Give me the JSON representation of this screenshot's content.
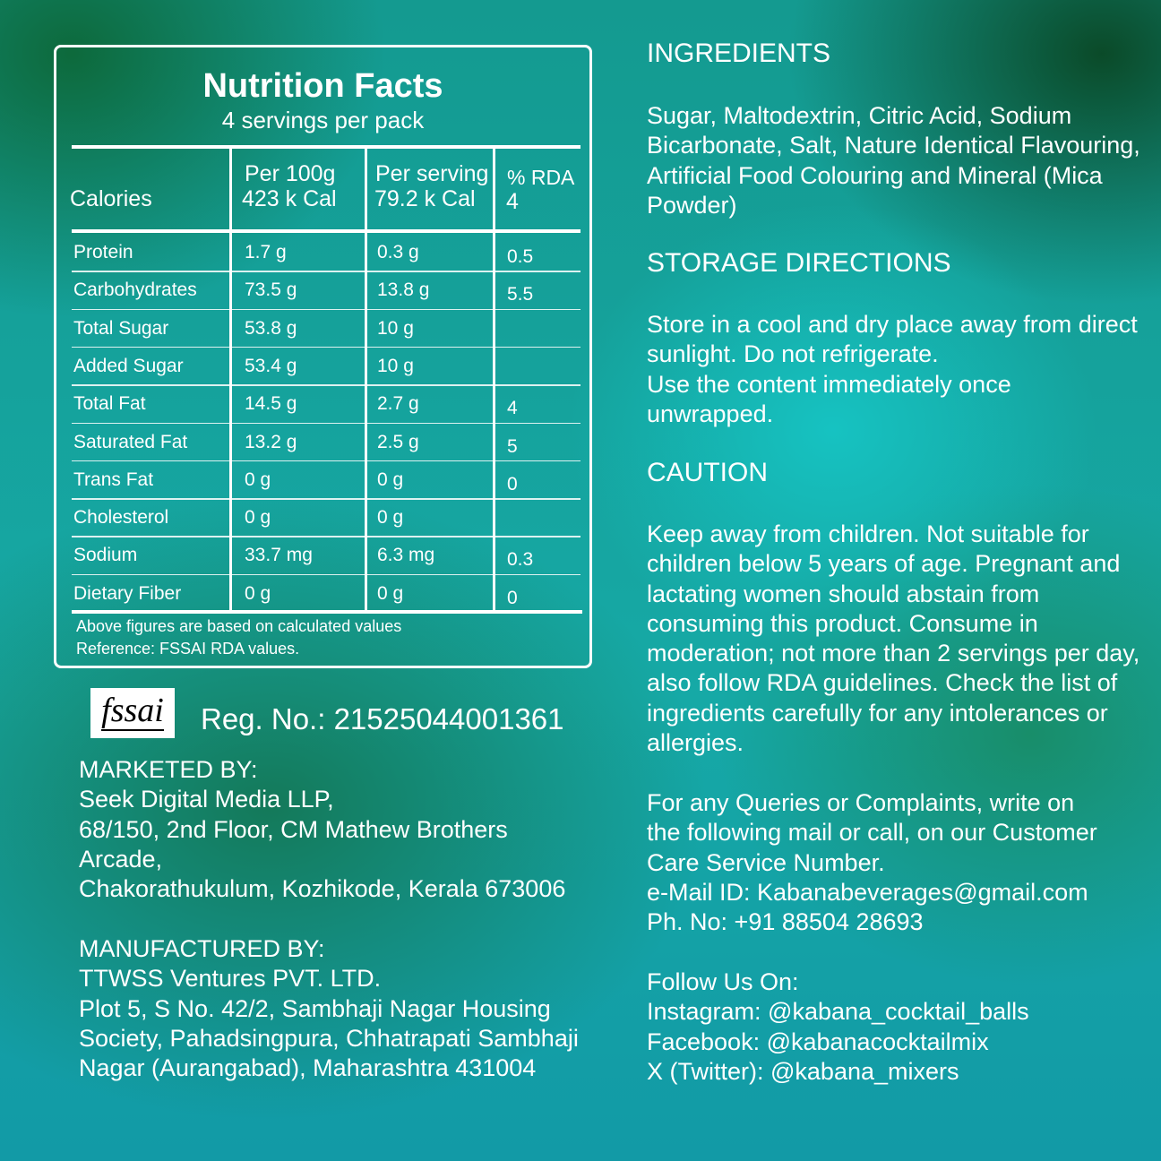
{
  "nutrition": {
    "title": "Nutrition Facts",
    "servings": "4 servings per pack",
    "calories_label": "Calories",
    "col_per100": "Per 100g",
    "cal_per100": "423 k Cal",
    "col_serving": "Per serving",
    "cal_serving": "79.2 k Cal",
    "col_rda": "% RDA",
    "cal_rda": "4",
    "rows": [
      {
        "name": "Protein",
        "per100": "1.7 g",
        "serving": "0.3 g",
        "rda": "0.5"
      },
      {
        "name": "Carbohydrates",
        "per100": "73.5 g",
        "serving": "13.8 g",
        "rda": "5.5"
      },
      {
        "name": "Total Sugar",
        "per100": "53.8 g",
        "serving": "10 g",
        "rda": ""
      },
      {
        "name": "Added Sugar",
        "per100": "53.4 g",
        "serving": "10 g",
        "rda": ""
      },
      {
        "name": "Total Fat",
        "per100": "14.5 g",
        "serving": "2.7 g",
        "rda": "4"
      },
      {
        "name": "Saturated Fat",
        "per100": "13.2 g",
        "serving": "2.5 g",
        "rda": "5"
      },
      {
        "name": "Trans Fat",
        "per100": "0 g",
        "serving": "0 g",
        "rda": "0"
      },
      {
        "name": "Cholesterol",
        "per100": "0 g",
        "serving": "0 g",
        "rda": ""
      },
      {
        "name": "Sodium",
        "per100": "33.7 mg",
        "serving": "6.3 mg",
        "rda": "0.3"
      },
      {
        "name": "Dietary Fiber",
        "per100": "0 g",
        "serving": "0 g",
        "rda": "0"
      }
    ],
    "note1": "Above figures are based on calculated values",
    "note2": "Reference: FSSAI RDA values."
  },
  "fssai": {
    "logo_text": "fssai",
    "reg": "Reg. No.: 21525044001361"
  },
  "marketed": {
    "heading": "MARKETED BY:",
    "lines": [
      "Seek Digital Media LLP,",
      "68/150, 2nd Floor, CM Mathew Brothers",
      "Arcade,",
      "Chakorathukulum, Kozhikode, Kerala 673006"
    ]
  },
  "manufactured": {
    "heading": "MANUFACTURED BY:",
    "lines": [
      "TTWSS Ventures PVT. LTD.",
      "Plot 5, S No. 42/2, Sambhaji Nagar Housing",
      "Society, Pahadsingpura, Chhatrapati Sambhaji",
      "Nagar (Aurangabad), Maharashtra 431004"
    ]
  },
  "ingredients": {
    "heading": "INGREDIENTS",
    "text": "Sugar, Maltodextrin, Citric Acid, Sodium Bicarbonate, Salt, Nature Identical Flavouring, Artificial Food Colouring and Mineral (Mica Powder)"
  },
  "storage": {
    "heading": "STORAGE DIRECTIONS",
    "text1": "Store in a cool and dry place away from direct sunlight. Do not refrigerate.",
    "text2": "Use the content immediately once unwrapped."
  },
  "caution": {
    "heading": "CAUTION",
    "text": "Keep away from children. Not suitable for children below 5 years of age. Pregnant and lactating women should abstain from consuming this product. Consume in moderation; not more than 2 servings per day, also follow RDA guidelines. Check the list of ingredients carefully for any intolerances or allergies."
  },
  "contact": {
    "text": "For any Queries or Complaints, write on the following mail or call, on our Customer Care Service Number.",
    "email": "e-Mail ID: Kabanabeverages@gmail.com",
    "phone": "Ph. No: +91 88504 28693"
  },
  "social": {
    "heading": "Follow Us On:",
    "instagram": "Instagram: @kabana_cocktail_balls",
    "facebook": "Facebook: @kabanacocktailmix",
    "twitter": "X (Twitter): @kabana_mixers"
  }
}
